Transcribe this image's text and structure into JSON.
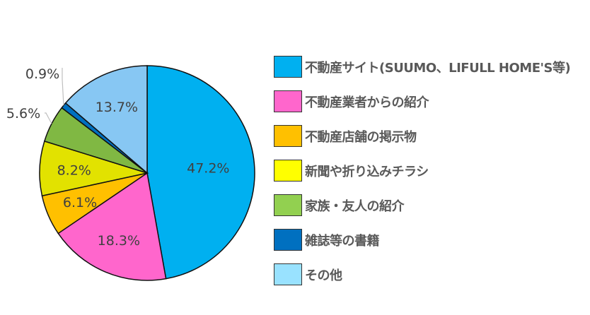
{
  "chart_data": {
    "type": "pie",
    "start": "top, clockwise",
    "legend_position": "right",
    "slices": [
      {
        "name": "不動産サイト(SUUMO、LIFULL HOME'S等)",
        "value": 47.2,
        "label": "47.2%",
        "color": "#00b0f0",
        "legend_color": "#00b0f0"
      },
      {
        "name": "不動産業者からの紹介",
        "value": 18.3,
        "label": "18.3%",
        "color": "#ff66cc",
        "legend_color": "#ff66cc"
      },
      {
        "name": "不動産店舗の掲示物",
        "value": 6.1,
        "label": "6.1%",
        "color": "#ffc000",
        "legend_color": "#ffc000"
      },
      {
        "name": "新聞や折り込みチラシ",
        "value": 8.2,
        "label": "8.2%",
        "color": "#e2e200",
        "legend_color": "#ffff00"
      },
      {
        "name": "家族・友人の紹介",
        "value": 5.6,
        "label": "5.6%",
        "color": "#80b843",
        "legend_color": "#92d050"
      },
      {
        "name": "雑誌等の書籍",
        "value": 0.9,
        "label": "0.9%",
        "color": "#0070c0",
        "legend_color": "#0070c0"
      },
      {
        "name": "その他",
        "value": 13.7,
        "label": "13.7%",
        "color": "#87c7f3",
        "legend_color": "#99e2ff"
      }
    ]
  }
}
